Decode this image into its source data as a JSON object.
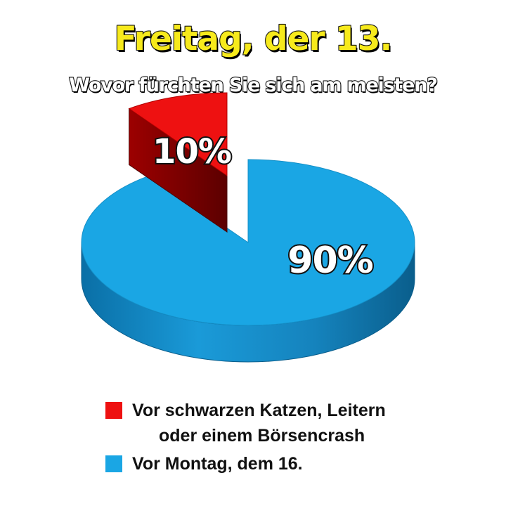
{
  "chart_data": {
    "type": "pie",
    "title": "Freitag, der 13.",
    "subtitle": "Wovor fürchten Sie sich am meisten?",
    "slices": [
      {
        "label_lines": [
          "Vor schwarzen Katzen, Leitern",
          "oder einem Börsencrash"
        ],
        "value": 10,
        "value_label": "10%",
        "color": "#ee1111",
        "exploded": true
      },
      {
        "label_lines": [
          "Vor Montag, dem 16."
        ],
        "value": 90,
        "value_label": "90%",
        "color": "#1aa6e4",
        "exploded": false
      }
    ],
    "legend_position": "bottom",
    "style": "3d"
  }
}
